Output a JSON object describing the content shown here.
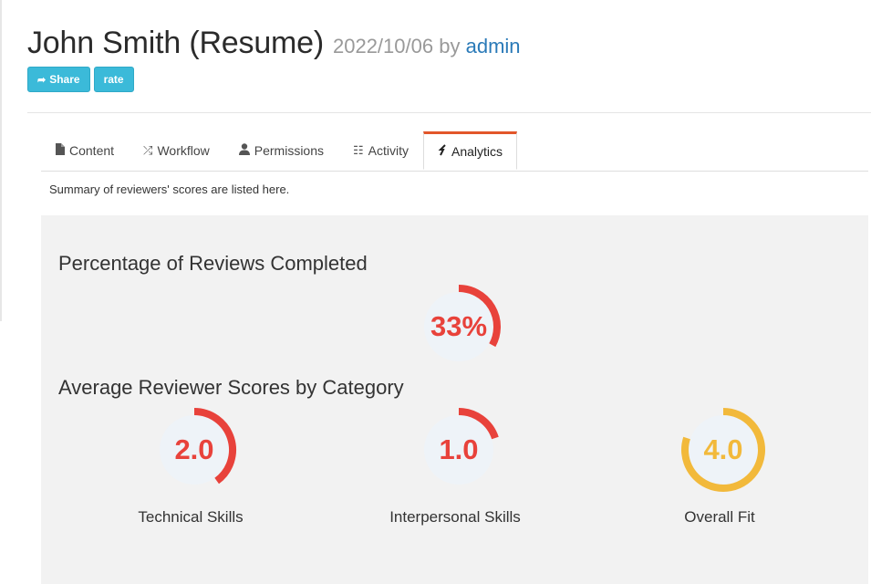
{
  "header": {
    "title": "John Smith (Resume)",
    "date": "2022/10/06",
    "by": "by",
    "author": "admin",
    "buttons": {
      "share": "Share",
      "rate": "rate"
    }
  },
  "tabs": [
    {
      "label": "Content",
      "icon": "file-icon"
    },
    {
      "label": "Workflow",
      "icon": "shuffle-icon"
    },
    {
      "label": "Permissions",
      "icon": "user-icon"
    },
    {
      "label": "Activity",
      "icon": "list-check-icon"
    },
    {
      "label": "Analytics",
      "icon": "analytics-icon",
      "active": true
    }
  ],
  "summary_text": "Summary of reviewers' scores are listed here.",
  "reviews_completed": {
    "title": "Percentage of Reviews Completed",
    "value_text": "33%",
    "fraction": 0.33,
    "color": "#e8423b"
  },
  "category_scores": {
    "title": "Average Reviewer Scores by Category",
    "max": 5,
    "items": [
      {
        "label": "Technical Skills",
        "value_text": "2.0",
        "value": 2.0,
        "color": "#e8423b"
      },
      {
        "label": "Interpersonal Skills",
        "value_text": "1.0",
        "value": 1.0,
        "color": "#e8423b"
      },
      {
        "label": "Overall Fit",
        "value_text": "4.0",
        "value": 4.0,
        "color": "#f2b93b"
      }
    ]
  },
  "colors": {
    "button": "#3bbad9",
    "active_tab_accent": "#e2562a",
    "link": "#2a7ab8",
    "panel": "#f2f2f2",
    "gauge_bg": "#eef3f8"
  }
}
